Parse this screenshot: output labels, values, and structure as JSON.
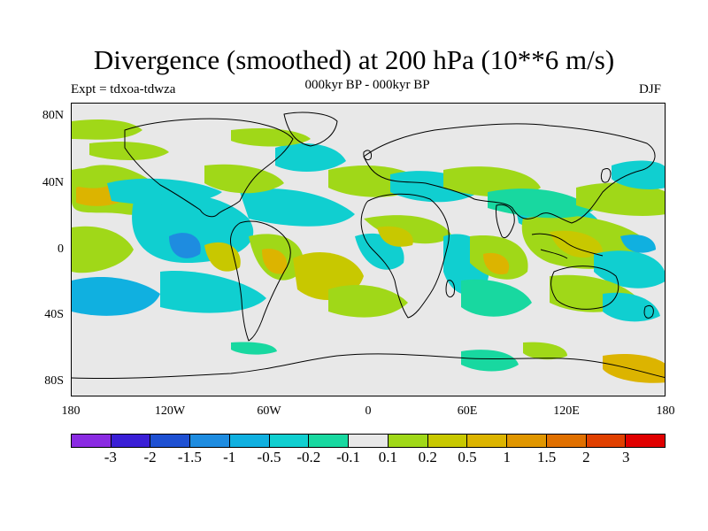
{
  "title": "Divergence (smoothed) at 200 hPa (10**6 m/s)",
  "subtitle": "000kyr BP - 000kyr BP",
  "experiment": "Expt = tdxoa-tdwza",
  "season": "DJF",
  "axes": {
    "lat_labels": [
      "80N",
      "40N",
      "0",
      "40S",
      "80S"
    ],
    "lon_labels": [
      "180",
      "120W",
      "60W",
      "0",
      "60E",
      "120E",
      "180"
    ]
  },
  "colorbar": {
    "colors": [
      "#8a2be2",
      "#3a1fd6",
      "#1e50d2",
      "#1e8ce0",
      "#10b0e0",
      "#10cfd0",
      "#18d8a0",
      "#e8e8e8",
      "#a0d818",
      "#c8c800",
      "#dcb400",
      "#e09600",
      "#e07000",
      "#e04000",
      "#e00000"
    ],
    "labels": [
      "-3",
      "-2",
      "-1.5",
      "-1",
      "-0.5",
      "-0.2",
      "-0.1",
      "0.1",
      "0.2",
      "0.5",
      "1",
      "1.5",
      "2",
      "3"
    ]
  },
  "map_colors": {
    "land_line": "#000000",
    "neutral": "#e8e8e8",
    "pos_weak": "#a0d818",
    "pos_mid": "#c8c800",
    "pos_strong": "#dcb400",
    "neg_weak": "#18d8a0",
    "neg_mid": "#10cfd0",
    "neg_strong": "#10b0e0",
    "neg_core": "#1e8ce0"
  }
}
